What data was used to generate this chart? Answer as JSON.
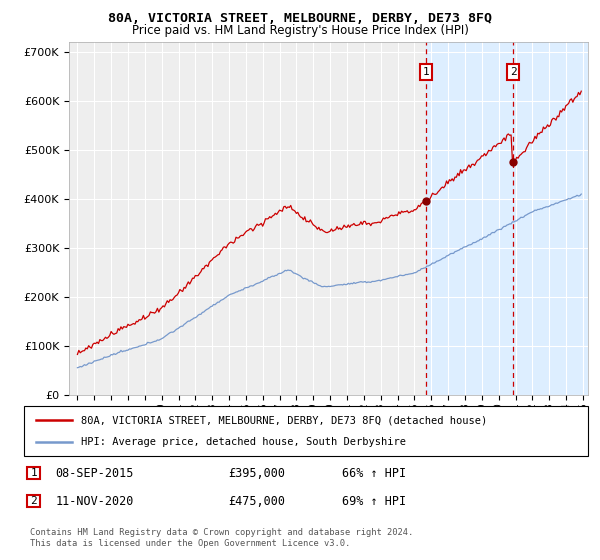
{
  "title": "80A, VICTORIA STREET, MELBOURNE, DERBY, DE73 8FQ",
  "subtitle": "Price paid vs. HM Land Registry's House Price Index (HPI)",
  "red_label": "80A, VICTORIA STREET, MELBOURNE, DERBY, DE73 8FQ (detached house)",
  "blue_label": "HPI: Average price, detached house, South Derbyshire",
  "annotation1_date": "08-SEP-2015",
  "annotation1_price": "£395,000",
  "annotation1_hpi": "66% ↑ HPI",
  "annotation2_date": "11-NOV-2020",
  "annotation2_price": "£475,000",
  "annotation2_hpi": "69% ↑ HPI",
  "footnote": "Contains HM Land Registry data © Crown copyright and database right 2024.\nThis data is licensed under the Open Government Licence v3.0.",
  "ylim": [
    0,
    720000
  ],
  "yticks": [
    0,
    100000,
    200000,
    300000,
    400000,
    500000,
    600000,
    700000
  ],
  "xlim_start": 1994.5,
  "xlim_end": 2025.3,
  "sale1_x": 2015.69,
  "sale1_y": 395000,
  "sale2_x": 2020.86,
  "sale2_y": 475000,
  "background_color": "#ffffff",
  "plot_bg_color": "#eeeeee",
  "highlight_bg_color": "#ddeeff",
  "grid_color": "#ffffff",
  "red_color": "#cc0000",
  "blue_color": "#7799cc"
}
